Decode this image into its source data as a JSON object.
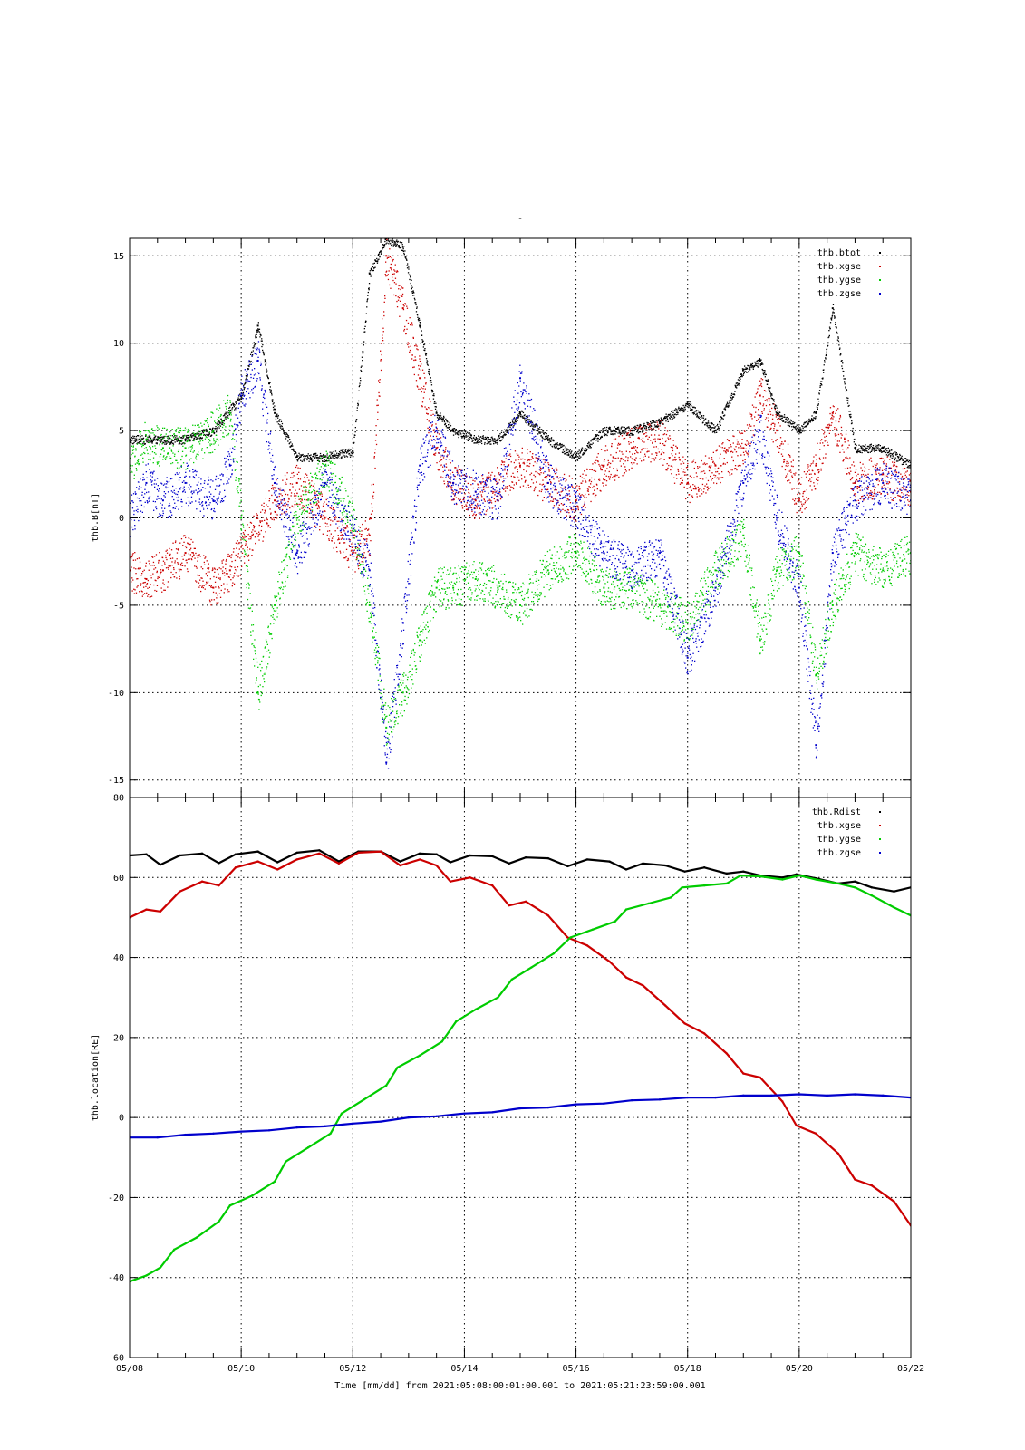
{
  "figure": {
    "title": "-",
    "xlabel": "Time [mm/dd]  from 2021:05:08:00:01:00.001  to  2021:05:21:23:59:00.001"
  },
  "colors": {
    "black": "#000000",
    "red": "#cc0000",
    "green": "#00cc00",
    "blue": "#0000cc"
  },
  "chart_data": [
    {
      "type": "scatter",
      "ylabel": "thb.B[nT]",
      "x_ticks": [
        "05/08",
        "05/10",
        "05/12",
        "05/14",
        "05/16",
        "05/18",
        "05/20",
        "05/22"
      ],
      "xlim": [
        "05/08",
        "05/22"
      ],
      "ylim": [
        -16,
        16
      ],
      "y_ticks": [
        -15,
        -10,
        -5,
        0,
        5,
        10,
        15
      ],
      "grid": true,
      "legend_position": "top-right",
      "series": [
        {
          "name": "thb.btot",
          "color": "black",
          "x": [
            8.0,
            8.5,
            9.0,
            9.5,
            10.0,
            10.3,
            10.6,
            11.0,
            11.5,
            12.0,
            12.3,
            12.6,
            12.9,
            13.2,
            13.5,
            13.8,
            14.2,
            14.6,
            15.0,
            15.5,
            16.0,
            16.5,
            17.0,
            17.5,
            18.0,
            18.5,
            19.0,
            19.3,
            19.6,
            20.0,
            20.3,
            20.6,
            21.0,
            21.5,
            22.0
          ],
          "y": [
            4.5,
            4.5,
            4.5,
            5.0,
            7.0,
            11.0,
            6.0,
            3.5,
            3.5,
            3.8,
            14.0,
            16.0,
            15.5,
            11.0,
            6.0,
            5.0,
            4.5,
            4.5,
            6.0,
            4.5,
            3.5,
            5.0,
            5.0,
            5.5,
            6.5,
            5.0,
            8.5,
            9.0,
            6.0,
            5.0,
            6.0,
            12.0,
            4.0,
            4.0,
            3.0
          ]
        },
        {
          "name": "thb.xgse",
          "color": "red",
          "x": [
            8.0,
            8.3,
            8.6,
            9.0,
            9.5,
            9.8,
            10.2,
            10.6,
            11.0,
            11.5,
            12.0,
            12.3,
            12.6,
            12.9,
            13.2,
            13.5,
            13.8,
            14.2,
            14.6,
            15.0,
            15.5,
            16.0,
            16.5,
            17.0,
            17.5,
            18.0,
            18.5,
            19.0,
            19.3,
            19.6,
            20.0,
            20.3,
            20.6,
            21.0,
            21.5,
            22.0
          ],
          "y": [
            -3.0,
            -3.5,
            -3.0,
            -2.0,
            -4.0,
            -3.0,
            -1.0,
            1.0,
            2.0,
            0.0,
            -2.0,
            -1.0,
            15.0,
            12.0,
            8.0,
            4.0,
            2.0,
            1.0,
            2.0,
            3.0,
            2.0,
            1.0,
            3.0,
            4.0,
            4.5,
            2.0,
            3.0,
            4.0,
            7.0,
            5.0,
            1.0,
            3.0,
            6.0,
            2.0,
            2.5,
            1.5
          ]
        },
        {
          "name": "thb.ygse",
          "color": "green",
          "x": [
            8.0,
            8.3,
            8.6,
            9.0,
            9.5,
            9.8,
            10.0,
            10.3,
            10.6,
            11.0,
            11.5,
            12.0,
            12.3,
            12.6,
            12.9,
            13.2,
            13.5,
            13.8,
            14.2,
            14.6,
            15.0,
            15.5,
            16.0,
            16.5,
            17.0,
            17.5,
            18.0,
            18.5,
            19.0,
            19.3,
            19.6,
            20.0,
            20.3,
            20.6,
            21.0,
            21.5,
            22.0
          ],
          "y": [
            3.0,
            4.5,
            4.0,
            4.0,
            5.0,
            6.0,
            0.0,
            -10.0,
            -5.0,
            0.0,
            3.0,
            0.0,
            -5.0,
            -12.0,
            -10.0,
            -7.0,
            -4.0,
            -4.0,
            -3.5,
            -4.0,
            -5.0,
            -3.0,
            -2.0,
            -4.0,
            -4.0,
            -5.0,
            -6.0,
            -3.0,
            -1.0,
            -7.0,
            -3.0,
            -2.0,
            -9.0,
            -5.0,
            -2.0,
            -3.0,
            -2.0
          ]
        },
        {
          "name": "thb.zgse",
          "color": "blue",
          "x": [
            8.0,
            8.3,
            8.6,
            9.0,
            9.5,
            9.8,
            10.0,
            10.3,
            10.6,
            11.0,
            11.5,
            12.0,
            12.3,
            12.6,
            12.9,
            13.2,
            13.5,
            13.8,
            14.2,
            14.6,
            15.0,
            15.5,
            16.0,
            16.5,
            17.0,
            17.5,
            18.0,
            18.5,
            19.0,
            19.3,
            19.6,
            20.0,
            20.3,
            20.6,
            21.0,
            21.5,
            22.0
          ],
          "y": [
            0.0,
            2.0,
            1.0,
            2.0,
            1.0,
            3.0,
            7.0,
            9.0,
            2.0,
            -2.0,
            2.0,
            -1.0,
            -3.0,
            -14.0,
            -6.0,
            3.0,
            5.0,
            2.0,
            1.5,
            1.0,
            8.0,
            2.0,
            0.5,
            -2.0,
            -3.0,
            -2.0,
            -8.0,
            -4.0,
            2.0,
            5.0,
            0.0,
            -4.0,
            -13.0,
            -2.0,
            1.0,
            2.0,
            1.0
          ]
        }
      ]
    },
    {
      "type": "line",
      "ylabel": "thb.location[RE]",
      "x_ticks": [
        "05/08",
        "05/10",
        "05/12",
        "05/14",
        "05/16",
        "05/18",
        "05/20",
        "05/22"
      ],
      "xlim": [
        "05/08",
        "05/22"
      ],
      "ylim": [
        -60,
        80
      ],
      "y_ticks": [
        -60,
        -40,
        -20,
        0,
        20,
        40,
        60,
        80
      ],
      "grid": true,
      "legend_position": "top-right",
      "series": [
        {
          "name": "thb.Rdist",
          "color": "black",
          "x": [
            8.0,
            8.3,
            8.55,
            8.9,
            9.3,
            9.6,
            9.9,
            10.3,
            10.65,
            11.0,
            11.4,
            11.75,
            12.1,
            12.5,
            12.85,
            13.2,
            13.5,
            13.75,
            14.1,
            14.5,
            14.8,
            15.1,
            15.5,
            15.85,
            16.2,
            16.6,
            16.9,
            17.2,
            17.6,
            17.95,
            18.3,
            18.7,
            19.0,
            19.3,
            19.7,
            19.95,
            20.3,
            20.7,
            21.0,
            21.3,
            21.7,
            22.0
          ],
          "y": [
            65.5,
            65.8,
            63.2,
            65.5,
            66.0,
            63.6,
            65.8,
            66.5,
            63.8,
            66.2,
            66.8,
            64.0,
            66.5,
            66.5,
            64.0,
            66.0,
            65.8,
            63.8,
            65.5,
            65.3,
            63.5,
            65.0,
            64.8,
            62.8,
            64.5,
            64.0,
            62.0,
            63.5,
            63.0,
            61.5,
            62.5,
            61.0,
            61.5,
            60.5,
            60.0,
            60.8,
            59.8,
            58.5,
            59.0,
            57.5,
            56.5,
            57.5
          ]
        },
        {
          "name": "thb.xgse",
          "color": "red",
          "x": [
            8.0,
            8.3,
            8.55,
            8.9,
            9.3,
            9.6,
            9.9,
            10.3,
            10.65,
            11.0,
            11.4,
            11.75,
            12.1,
            12.5,
            12.85,
            13.2,
            13.5,
            13.75,
            14.1,
            14.5,
            14.8,
            15.1,
            15.5,
            15.85,
            16.2,
            16.6,
            16.9,
            17.2,
            17.6,
            17.95,
            18.3,
            18.7,
            19.0,
            19.3,
            19.7,
            19.95,
            20.3,
            20.7,
            21.0,
            21.3,
            21.7,
            22.0
          ],
          "y": [
            50.0,
            52.0,
            51.5,
            56.5,
            59.0,
            58.0,
            62.5,
            64.0,
            62.0,
            64.5,
            66.0,
            63.5,
            66.2,
            66.5,
            63.0,
            64.5,
            63.0,
            59.0,
            60.0,
            58.0,
            53.0,
            54.0,
            50.5,
            45.0,
            43.0,
            39.0,
            35.0,
            33.0,
            28.0,
            23.5,
            21.0,
            16.0,
            11.0,
            10.0,
            4.0,
            -2.0,
            -4.0,
            -9.0,
            -15.5,
            -17.0,
            -21.0,
            -27.0
          ]
        },
        {
          "name": "thb.ygse",
          "color": "green",
          "x": [
            8.0,
            8.3,
            8.55,
            8.8,
            9.2,
            9.6,
            9.8,
            10.2,
            10.6,
            10.8,
            11.2,
            11.6,
            11.8,
            12.2,
            12.6,
            12.8,
            13.2,
            13.6,
            13.85,
            14.2,
            14.6,
            14.85,
            15.2,
            15.6,
            15.9,
            16.3,
            16.7,
            16.9,
            17.3,
            17.7,
            17.9,
            18.3,
            18.7,
            18.95,
            19.3,
            19.7,
            20.0,
            20.3,
            20.7,
            21.0,
            21.3,
            21.7,
            22.0
          ],
          "y": [
            -41.0,
            -39.5,
            -37.5,
            -33.0,
            -30.0,
            -26.0,
            -22.0,
            -19.5,
            -16.0,
            -11.0,
            -7.5,
            -4.0,
            1.0,
            4.5,
            8.0,
            12.5,
            15.5,
            19.0,
            24.0,
            27.0,
            30.0,
            34.5,
            37.5,
            41.0,
            45.0,
            47.0,
            49.0,
            52.0,
            53.5,
            55.0,
            57.5,
            58.0,
            58.5,
            60.5,
            60.3,
            59.5,
            60.5,
            59.5,
            58.5,
            57.5,
            55.5,
            52.5,
            50.5
          ]
        },
        {
          "name": "thb.zgse",
          "color": "blue",
          "x": [
            8.0,
            8.5,
            9.0,
            9.5,
            10.0,
            10.5,
            11.0,
            11.5,
            12.0,
            12.5,
            13.0,
            13.5,
            14.0,
            14.5,
            15.0,
            15.5,
            16.0,
            16.5,
            17.0,
            17.5,
            18.0,
            18.5,
            19.0,
            19.5,
            20.0,
            20.5,
            21.0,
            21.5,
            22.0
          ],
          "y": [
            -5.0,
            -5.0,
            -4.3,
            -4.0,
            -3.5,
            -3.2,
            -2.5,
            -2.2,
            -1.5,
            -1.0,
            0.0,
            0.3,
            1.0,
            1.3,
            2.3,
            2.5,
            3.3,
            3.5,
            4.3,
            4.5,
            5.0,
            5.0,
            5.5,
            5.5,
            5.8,
            5.5,
            5.8,
            5.5,
            5.0
          ]
        }
      ]
    }
  ]
}
